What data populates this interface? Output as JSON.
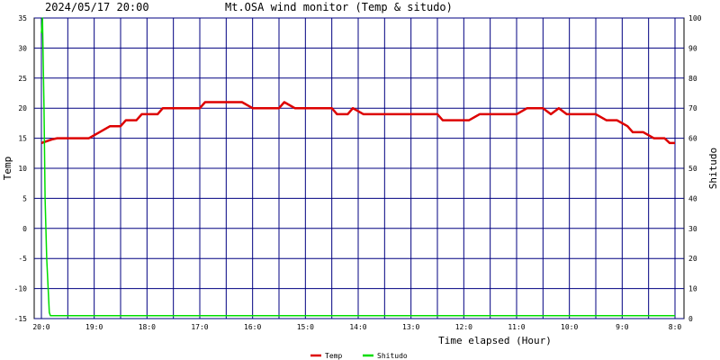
{
  "header": {
    "datetime": "2024/05/17 20:00",
    "title": "Mt.OSA wind monitor (Temp & situdo)"
  },
  "chart_data": {
    "type": "line",
    "xlabel": "Time elapsed (Hour)",
    "x_tick_labels": [
      "20:0",
      "19:0",
      "18:0",
      "17:0",
      "16:0",
      "15:0",
      "14:0",
      "13:0",
      "12:0",
      "11:0",
      "10:0",
      "9:0",
      "8:0"
    ],
    "x_range_hours_elapsed": [
      0,
      12
    ],
    "left_axis": {
      "label": "Temp",
      "ylim": [
        -15,
        35
      ],
      "ticks": [
        35,
        30,
        25,
        20,
        15,
        10,
        5,
        0,
        -5,
        -10,
        -15
      ]
    },
    "right_axis": {
      "label": "Shitudo",
      "ylim": [
        0,
        100
      ],
      "ticks": [
        100,
        90,
        80,
        70,
        60,
        50,
        40,
        30,
        20,
        10,
        0
      ]
    },
    "grid": true,
    "legend_position": "bottom-center",
    "series": [
      {
        "name": "Temp",
        "axis": "left",
        "color": "#dd0000",
        "points": [
          [
            0,
            14.2
          ],
          [
            0.2,
            14.8
          ],
          [
            0.3,
            15
          ],
          [
            0.8,
            15
          ],
          [
            0.9,
            15
          ],
          [
            1.1,
            16
          ],
          [
            1.3,
            17
          ],
          [
            1.5,
            17
          ],
          [
            1.6,
            18
          ],
          [
            1.8,
            18
          ],
          [
            1.9,
            19
          ],
          [
            2.2,
            19
          ],
          [
            2.3,
            20
          ],
          [
            3.0,
            20
          ],
          [
            3.1,
            21
          ],
          [
            3.8,
            21
          ],
          [
            4.0,
            20
          ],
          [
            4.5,
            20
          ],
          [
            4.6,
            21
          ],
          [
            4.8,
            20
          ],
          [
            5.5,
            20
          ],
          [
            5.6,
            19
          ],
          [
            5.8,
            19
          ],
          [
            5.9,
            20
          ],
          [
            6.1,
            19
          ],
          [
            7.5,
            19
          ],
          [
            7.6,
            18
          ],
          [
            8.1,
            18
          ],
          [
            8.3,
            19
          ],
          [
            9.0,
            19
          ],
          [
            9.2,
            20
          ],
          [
            9.5,
            20
          ],
          [
            9.65,
            19
          ],
          [
            9.8,
            20
          ],
          [
            9.95,
            19
          ],
          [
            10.5,
            19
          ],
          [
            10.7,
            18
          ],
          [
            10.9,
            18
          ],
          [
            11.1,
            17
          ],
          [
            11.2,
            16
          ],
          [
            11.4,
            16
          ],
          [
            11.6,
            15
          ],
          [
            11.8,
            15
          ],
          [
            11.9,
            14.2
          ],
          [
            12.0,
            14.2
          ]
        ]
      },
      {
        "name": "Shitudo",
        "axis": "right",
        "color": "#00dd00",
        "points": [
          [
            0,
            95
          ],
          [
            0.02,
            100
          ],
          [
            0.05,
            70
          ],
          [
            0.07,
            40
          ],
          [
            0.1,
            20
          ],
          [
            0.15,
            2
          ],
          [
            0.17,
            1
          ],
          [
            12.0,
            1
          ]
        ]
      }
    ]
  }
}
